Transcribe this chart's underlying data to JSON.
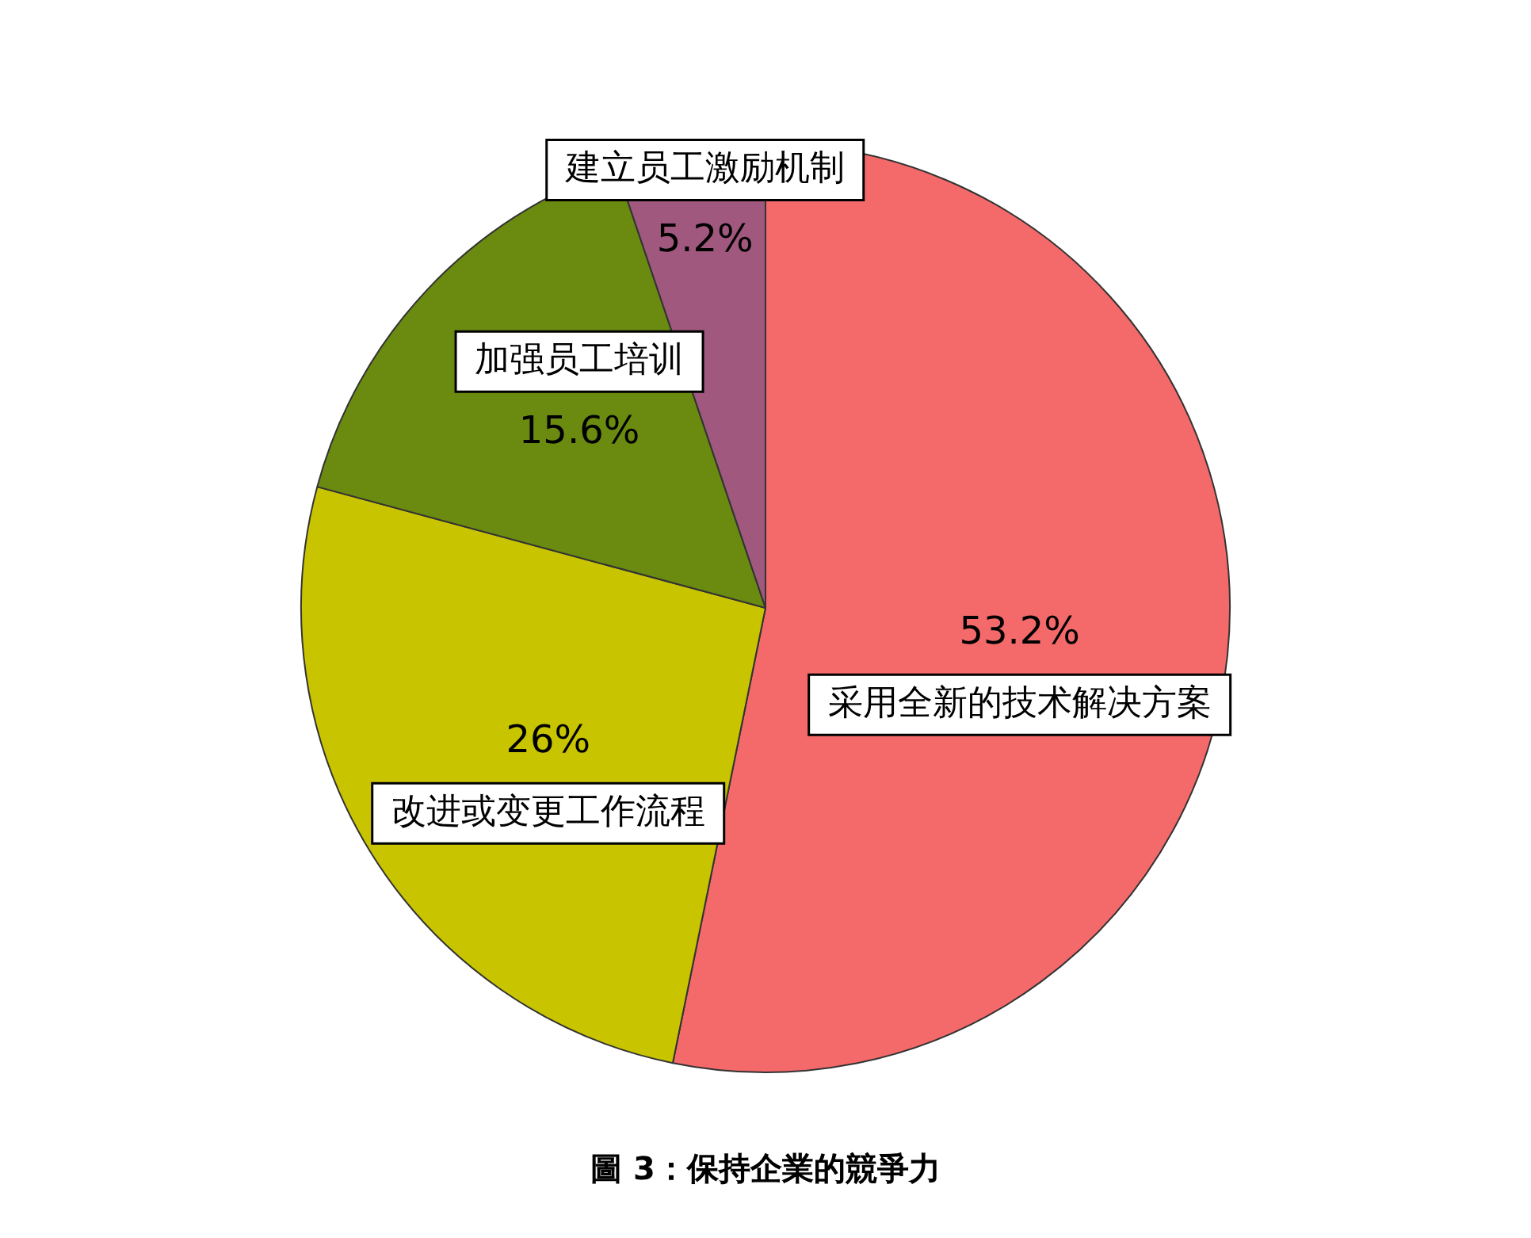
{
  "chart_data": {
    "type": "pie",
    "title": "圖 3：保持企業的競爭力",
    "categories": [
      "采用全新的技术解决方案",
      "改进或变更工作流程",
      "加强员工培训",
      "建立员工激励机制"
    ],
    "values": [
      53.2,
      26,
      15.6,
      5.2
    ],
    "value_labels": [
      "53.2%",
      "26%",
      "15.6%",
      "5.2%"
    ],
    "colors": [
      "#f46a6a",
      "#c8c400",
      "#6a8a10",
      "#a0587e"
    ],
    "legend": false
  }
}
